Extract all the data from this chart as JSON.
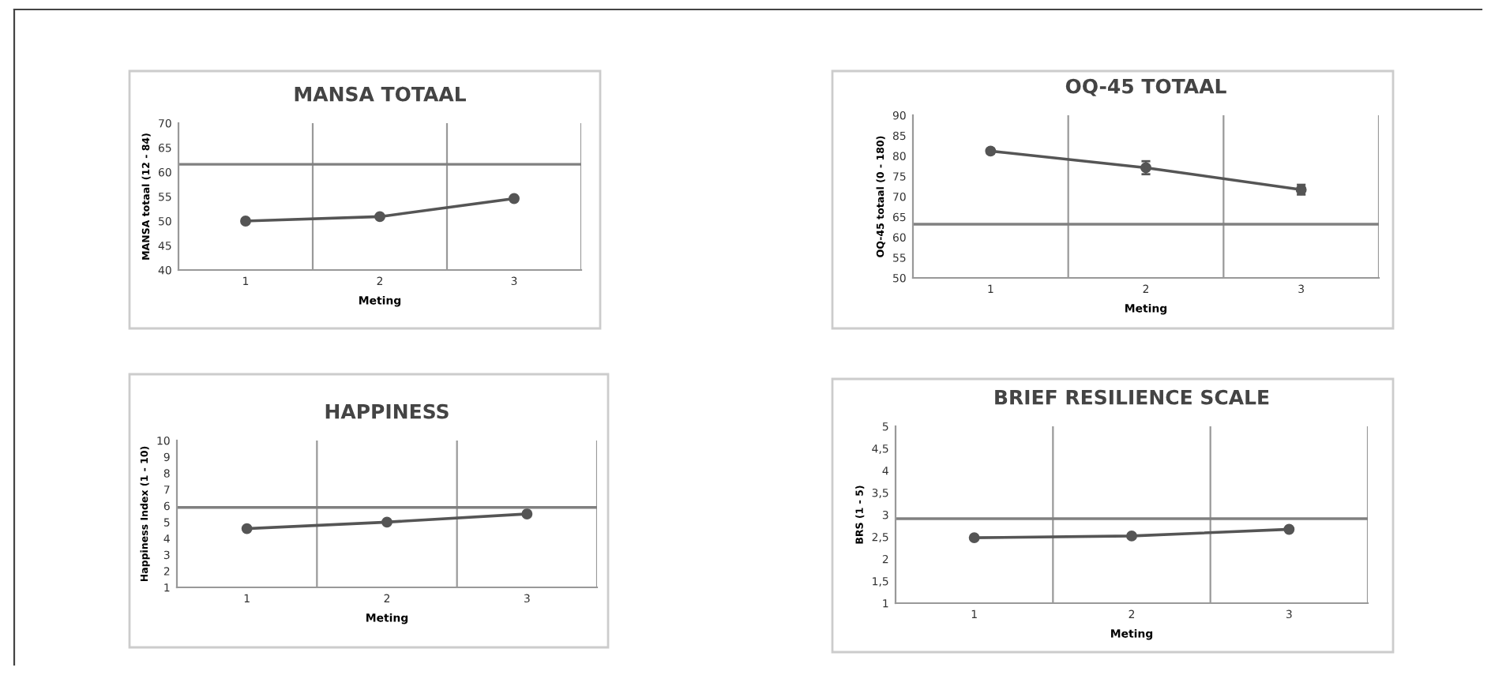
{
  "chart_data": [
    {
      "type": "line",
      "title": "MANSA TOTAAL",
      "xlabel": "Meting",
      "ylabel": "MANSA totaal (12 - 84)",
      "categories": [
        "1",
        "2",
        "3"
      ],
      "series": [
        {
          "color": "#555555",
          "values": [
            50,
            50.9,
            54.6
          ]
        }
      ],
      "ylim": [
        40,
        70
      ],
      "yticks": [
        40,
        45,
        50,
        55,
        60,
        65,
        70
      ],
      "grid": "x",
      "marker": "circle",
      "line_style": "solid",
      "ref_lines": [
        {
          "axis": "y",
          "value": 61.6,
          "color": "#808080"
        }
      ]
    },
    {
      "type": "line",
      "title": "OQ-45 TOTAAL",
      "xlabel": "Meting",
      "ylabel": "OQ-45 totaal (0 - 180)",
      "categories": [
        "1",
        "2",
        "3"
      ],
      "series": [
        {
          "color": "#555555",
          "values": [
            81.2,
            77.1,
            71.7
          ],
          "errors": [
            0.6,
            1.6,
            1.2
          ]
        }
      ],
      "ylim": [
        50,
        90
      ],
      "yticks": [
        50,
        55,
        60,
        65,
        70,
        75,
        80,
        85,
        90
      ],
      "grid": "x",
      "marker": "circle",
      "line_style": "solid",
      "ref_lines": [
        {
          "axis": "y",
          "value": 63.2,
          "color": "#808080"
        }
      ]
    },
    {
      "type": "line",
      "title": "HAPPINESS",
      "xlabel": "Meting",
      "ylabel": "Happiness Index (1 - 10)",
      "categories": [
        "1",
        "2",
        "3"
      ],
      "series": [
        {
          "color": "#555555",
          "values": [
            4.6,
            5.0,
            5.5
          ]
        }
      ],
      "ylim": [
        1,
        10
      ],
      "yticks": [
        1,
        2,
        3,
        4,
        5,
        6,
        7,
        8,
        9,
        10
      ],
      "grid": "x",
      "marker": "circle",
      "line_style": "solid",
      "ref_lines": [
        {
          "axis": "y",
          "value": 5.9,
          "color": "#808080"
        }
      ]
    },
    {
      "type": "line",
      "title": "BRIEF RESILIENCE SCALE",
      "xlabel": "Meting",
      "ylabel": "BRS (1 - 5)",
      "categories": [
        "1",
        "2",
        "3"
      ],
      "series": [
        {
          "color": "#555555",
          "values": [
            2.48,
            2.52,
            2.67
          ]
        }
      ],
      "ylim": [
        1,
        5
      ],
      "yticks": [
        1,
        {
          "value": 1.5,
          "label": "1,5"
        },
        2,
        {
          "value": 2.5,
          "label": "2,5"
        },
        3,
        {
          "value": 3.5,
          "label": "3,5"
        },
        4,
        {
          "value": 4.5,
          "label": "4,5"
        },
        5
      ],
      "grid": "x",
      "marker": "circle",
      "line_style": "solid",
      "ref_lines": [
        {
          "axis": "y",
          "value": 2.91,
          "color": "#808080"
        }
      ]
    }
  ]
}
